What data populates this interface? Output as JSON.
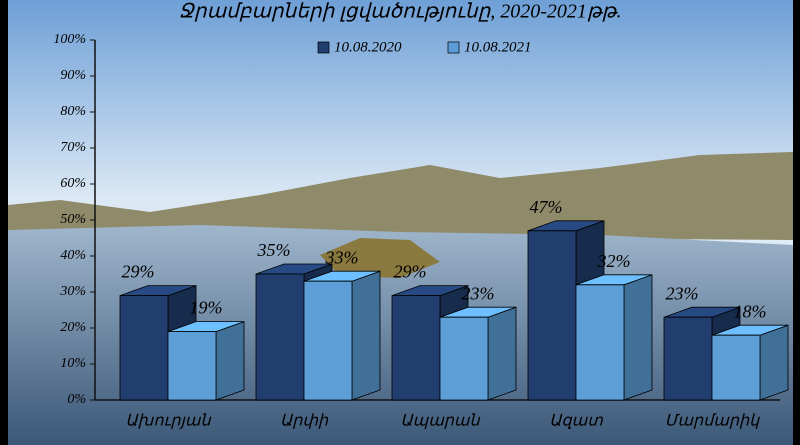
{
  "chart_data": {
    "type": "bar3d",
    "title": "Ջրամբարների լցվածությունը,  2020-2021թթ.",
    "categories": [
      "Ախուրյան",
      "Արփի",
      "Ապարան",
      "Ազատ",
      "Մարմարիկ"
    ],
    "series": [
      {
        "name": "10.08.2020",
        "color": "#213e6e",
        "values": [
          29,
          35,
          29,
          47,
          23
        ],
        "value_labels": [
          "29%",
          "35%",
          "29%",
          "47%",
          "23%"
        ]
      },
      {
        "name": "10.08.2021",
        "color": "#5c9fd8",
        "values": [
          19,
          33,
          23,
          32,
          18
        ],
        "value_labels": [
          "19%",
          "33%",
          "23%",
          "32%",
          "18%"
        ]
      }
    ],
    "ylim": [
      0,
      100
    ],
    "yticks": [
      {
        "value": 0,
        "label": "0%"
      },
      {
        "value": 10,
        "label": "10%"
      },
      {
        "value": 20,
        "label": "20%"
      },
      {
        "value": 30,
        "label": "30%"
      },
      {
        "value": 40,
        "label": "40%"
      },
      {
        "value": 50,
        "label": "50%"
      },
      {
        "value": 60,
        "label": "60%"
      },
      {
        "value": 70,
        "label": "70%"
      },
      {
        "value": 80,
        "label": "80%"
      },
      {
        "value": 90,
        "label": "90%"
      },
      {
        "value": 100,
        "label": "100%"
      }
    ]
  }
}
